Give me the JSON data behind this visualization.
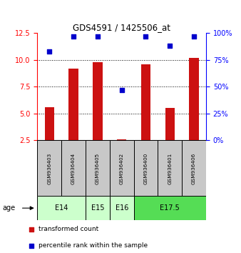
{
  "title": "GDS4591 / 1425506_at",
  "samples": [
    "GSM936403",
    "GSM936404",
    "GSM936405",
    "GSM936402",
    "GSM936400",
    "GSM936401",
    "GSM936406"
  ],
  "red_bars": [
    5.6,
    9.2,
    9.8,
    2.6,
    9.6,
    5.5,
    10.15
  ],
  "blue_dots": [
    10.8,
    12.2,
    12.2,
    7.2,
    12.2,
    11.3,
    12.2
  ],
  "ylim_left": [
    2.5,
    12.5
  ],
  "ylim_right": [
    0,
    100
  ],
  "yticks_left": [
    2.5,
    5.0,
    7.5,
    10.0,
    12.5
  ],
  "yticks_right": [
    0,
    25,
    50,
    75,
    100
  ],
  "age_groups": [
    {
      "label": "E14",
      "start": 0,
      "end": 2,
      "color": "#ccffcc"
    },
    {
      "label": "E15",
      "start": 2,
      "end": 3,
      "color": "#ccffcc"
    },
    {
      "label": "E16",
      "start": 3,
      "end": 4,
      "color": "#ccffcc"
    },
    {
      "label": "E17.5",
      "start": 4,
      "end": 7,
      "color": "#55dd55"
    }
  ],
  "bar_color": "#cc1111",
  "dot_color": "#0000cc",
  "bar_width": 0.4,
  "sample_box_color": "#c8c8c8",
  "grid_yticks": [
    5.0,
    7.5,
    10.0
  ],
  "legend_items": [
    {
      "color": "#cc1111",
      "label": "transformed count",
      "marker": "s"
    },
    {
      "color": "#0000cc",
      "label": "percentile rank within the sample",
      "marker": "s"
    }
  ]
}
